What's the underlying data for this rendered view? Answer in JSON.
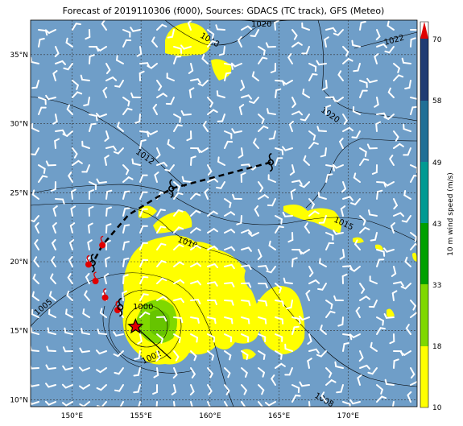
{
  "title": "Forecast of 2019110306 (f000), Sources: GDACS (TC track), GFS (Meteo)",
  "axes": {
    "lon_ticks": [
      "150°E",
      "155°E",
      "160°E",
      "165°E",
      "170°E"
    ],
    "lat_ticks": [
      "35°N",
      "30°N",
      "25°N",
      "20°N",
      "15°N",
      "10°N"
    ]
  },
  "colorbar": {
    "label": "10 m wind speed (m/s)",
    "ticks": [
      "70",
      "58",
      "49",
      "43",
      "33",
      "18",
      "10"
    ],
    "colors": [
      "#ffff00",
      "#7fd800",
      "#00a000",
      "#009a93",
      "#1f6f96",
      "#1f3b73",
      "#e00000"
    ]
  },
  "pressure_labels": [
    "1018",
    "1020",
    "1022",
    "1020",
    "1012",
    "1015",
    "1010",
    "1005",
    "1000",
    "1002",
    "1008"
  ],
  "colors": {
    "ocean": "#6f9ec8",
    "land_high_wind": "#ffff00",
    "wind_green": "#7fd800",
    "track_symbol": "#000000",
    "past_track": "#e00000",
    "storm_center": "#e00000"
  },
  "chart_data": {
    "type": "map",
    "lon_range": [
      147,
      175
    ],
    "lat_range": [
      9.5,
      37.5
    ],
    "grid": true,
    "forecast_track": [
      {
        "lon": 164.4,
        "lat": 27.2
      },
      {
        "lon": 157.2,
        "lat": 25.3
      },
      {
        "lon": 154.1,
        "lat": 23.4
      },
      {
        "lon": 152.2,
        "lat": 21.2
      },
      {
        "lon": 151.5,
        "lat": 19.9
      }
    ],
    "past_track": [
      {
        "lon": 151.2,
        "lat": 19.8
      },
      {
        "lon": 151.7,
        "lat": 18.6
      },
      {
        "lon": 152.4,
        "lat": 17.4
      },
      {
        "lon": 153.3,
        "lat": 16.5
      }
    ],
    "storm_center": {
      "lon": 154.6,
      "lat": 15.3
    }
  }
}
